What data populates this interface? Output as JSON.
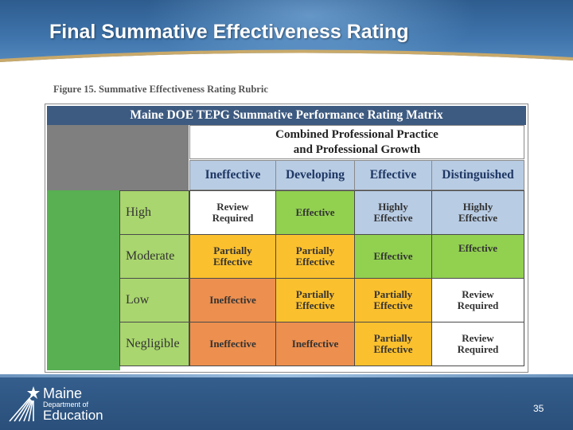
{
  "slide": {
    "title": "Final Summative Effectiveness Rating",
    "page_number": "35"
  },
  "figure": {
    "caption": "Figure 15. Summative Effectiveness Rating Rubric"
  },
  "matrix": {
    "title": "Maine DOE TEPG Summative Performance Rating Matrix",
    "combined_header_line1": "Combined Professional Practice",
    "combined_header_line2": "and Professional Growth",
    "columns": [
      "Ineffective",
      "Developing",
      "Effective",
      "Distinguished"
    ],
    "rows": [
      {
        "label": "High",
        "cells": [
          {
            "line1": "Review",
            "line2": "Required",
            "color": "#ffffff"
          },
          {
            "line1": "Effective",
            "line2": "",
            "color": "#92d050"
          },
          {
            "line1": "Highly",
            "line2": "Effective",
            "color": "#b8cce4"
          },
          {
            "line1": "Highly",
            "line2": "Effective",
            "color": "#b8cce4"
          }
        ]
      },
      {
        "label": "Moderate",
        "cells": [
          {
            "line1": "Partially",
            "line2": "Effective",
            "color": "#fbc02d"
          },
          {
            "line1": "Partially",
            "line2": "Effective",
            "color": "#fbc02d"
          },
          {
            "line1": "Effective",
            "line2": "",
            "color": "#92d050"
          },
          {
            "line1": "Effective",
            "line2": "",
            "color": "#92d050",
            "top": true
          }
        ]
      },
      {
        "label": "Low",
        "cells": [
          {
            "line1": "Ineffective",
            "line2": "",
            "color": "#ec8f4f"
          },
          {
            "line1": "Partially",
            "line2": "Effective",
            "color": "#fbc02d"
          },
          {
            "line1": "Partially",
            "line2": "Effective",
            "color": "#fbc02d"
          },
          {
            "line1": "Review",
            "line2": "Required",
            "color": "#ffffff"
          }
        ]
      },
      {
        "label": "Negligible",
        "cells": [
          {
            "line1": "Ineffective",
            "line2": "",
            "color": "#ec8f4f"
          },
          {
            "line1": "Ineffective",
            "line2": "",
            "color": "#ec8f4f"
          },
          {
            "line1": "Partially",
            "line2": "Effective",
            "color": "#fbc02d"
          },
          {
            "line1": "Review",
            "line2": "Required",
            "color": "#ffffff"
          }
        ]
      }
    ]
  },
  "logo": {
    "line1": "Maine",
    "line2": "Department of",
    "line3": "Education"
  },
  "colors": {
    "header_blue": "#3f75ac",
    "matrix_title": "#3d5a80",
    "column_header": "#b8cce4",
    "row_header": "#a9d66e",
    "side_green": "#58b052"
  }
}
